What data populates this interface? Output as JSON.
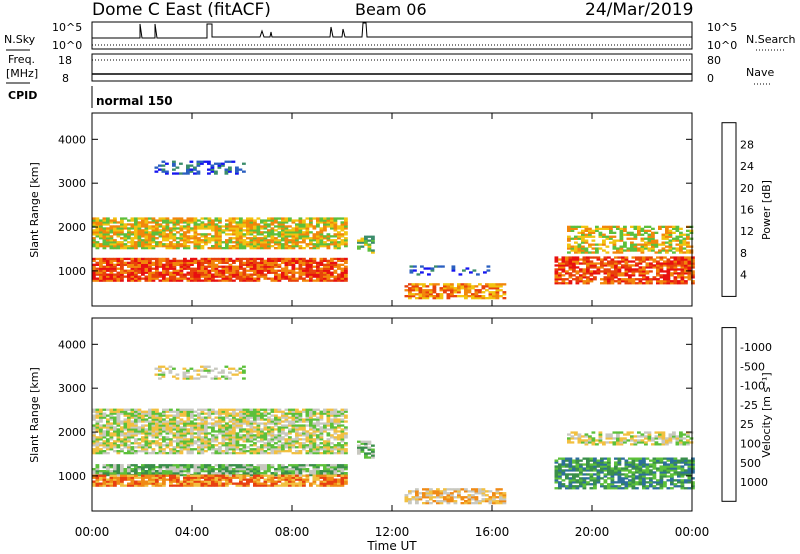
{
  "header": {
    "station": "Dome C East (fitACF)",
    "beam": "Beam 06",
    "date": "24/Mar/2019"
  },
  "small_panels": {
    "nsky_label": "N.Sky",
    "nsearch_label": "N.Search",
    "noise_ticks": [
      "10^5",
      "10^0"
    ],
    "freq_label_1": "Freq.",
    "freq_label_2": "[MHz]",
    "freq_ticks": [
      "18",
      "8"
    ],
    "nave_label": "Nave",
    "nave_ticks": [
      "80",
      "0"
    ],
    "cpid_label": "CPID",
    "cpid_value": "normal 150"
  },
  "chart_data": [
    {
      "type": "heatmap",
      "name": "power",
      "ylabel": "Slant Range [km]",
      "ylim": [
        200,
        4600
      ],
      "yticks": [
        1000,
        2000,
        3000,
        4000
      ],
      "xlim": [
        0,
        24
      ],
      "colorbar_label": "Power [dB]",
      "colorbar_ticks": [
        "4",
        "8",
        "12",
        "16",
        "20",
        "24",
        "28"
      ],
      "colorbar_colors": [
        "#1515f0",
        "#2a5fc0",
        "#3a8c6a",
        "#5cbf3c",
        "#f2c30f",
        "#f2860b",
        "#e8420a",
        "#e81010"
      ],
      "bands": [
        {
          "t0": 0.0,
          "t1": 10.1,
          "r0": 760,
          "r1": 1260,
          "level": 6,
          "density": 0.85
        },
        {
          "t0": 0.0,
          "t1": 10.1,
          "r0": 1500,
          "r1": 2200,
          "level": 4,
          "density": 0.8
        },
        {
          "t0": 2.5,
          "t1": 6.0,
          "r0": 3200,
          "r1": 3500,
          "level": 1,
          "density": 0.35
        },
        {
          "t0": 10.6,
          "t1": 11.3,
          "r0": 1400,
          "r1": 1800,
          "level": 3,
          "density": 0.6
        },
        {
          "t0": 12.5,
          "t1": 16.5,
          "r0": 360,
          "r1": 720,
          "level": 5,
          "density": 0.7
        },
        {
          "t0": 12.7,
          "t1": 15.8,
          "r0": 900,
          "r1": 1100,
          "level": 1,
          "density": 0.3
        },
        {
          "t0": 18.5,
          "t1": 24.0,
          "r0": 700,
          "r1": 1300,
          "level": 6,
          "density": 0.75
        },
        {
          "t0": 19.0,
          "t1": 24.0,
          "r0": 1400,
          "r1": 2000,
          "level": 4,
          "density": 0.6
        }
      ]
    },
    {
      "type": "heatmap",
      "name": "velocity",
      "ylabel": "Slant Range [km]",
      "ylim": [
        200,
        4600
      ],
      "yticks": [
        1000,
        2000,
        3000,
        4000
      ],
      "xlim": [
        0,
        24
      ],
      "xticks": [
        "00:00",
        "04:00",
        "08:00",
        "12:00",
        "16:00",
        "20:00",
        "00:00"
      ],
      "xlabel": "Time UT",
      "colorbar_label": "Velocity [m s⁻¹]",
      "colorbar_ticks": [
        "1000",
        "500",
        "100",
        "25",
        "-25",
        "-100",
        "-500",
        "-1000"
      ],
      "colorbar_colors": [
        "#1d3fd0",
        "#2d6f9a",
        "#3a8f4a",
        "#5cc03a",
        "#c8c8c0",
        "#f2c040",
        "#f08a15",
        "#e84010",
        "#e01010"
      ],
      "bands": [
        {
          "t0": 0.0,
          "t1": 10.1,
          "r0": 1000,
          "r1": 1260,
          "level": 3,
          "density": 0.85
        },
        {
          "t0": 0.0,
          "t1": 10.1,
          "r0": 760,
          "r1": 1000,
          "level": 6,
          "density": 0.85
        },
        {
          "t0": 0.0,
          "t1": 10.1,
          "r0": 1500,
          "r1": 2500,
          "level": 4,
          "density": 0.8
        },
        {
          "t0": 2.5,
          "t1": 6.0,
          "r0": 3200,
          "r1": 3500,
          "level": 4,
          "density": 0.35
        },
        {
          "t0": 10.6,
          "t1": 11.3,
          "r0": 1400,
          "r1": 1800,
          "level": 3,
          "density": 0.6
        },
        {
          "t0": 12.5,
          "t1": 16.5,
          "r0": 360,
          "r1": 720,
          "level": 5,
          "density": 0.7
        },
        {
          "t0": 18.5,
          "t1": 24.0,
          "r0": 700,
          "r1": 1400,
          "level": 2,
          "density": 0.75
        },
        {
          "t0": 19.0,
          "t1": 24.0,
          "r0": 1700,
          "r1": 2000,
          "level": 4,
          "density": 0.6
        }
      ]
    }
  ]
}
